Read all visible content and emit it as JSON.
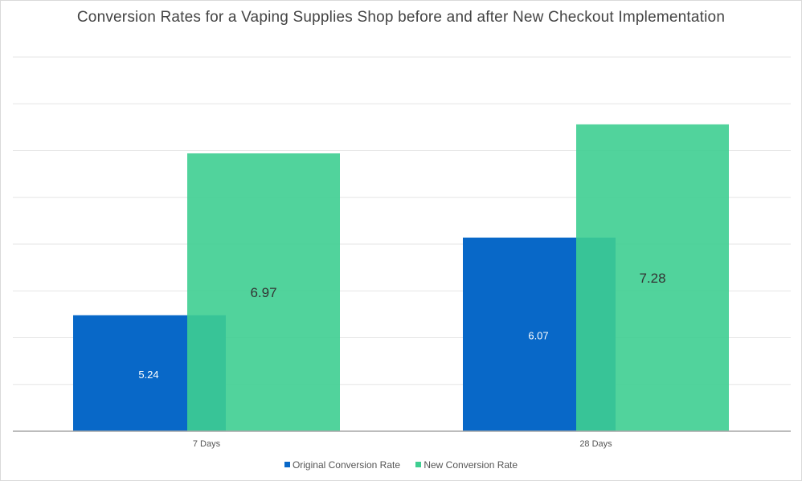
{
  "chart_data": {
    "type": "bar",
    "title": "Conversion Rates for a Vaping Supplies Shop before and after New Checkout Implementation",
    "categories": [
      "7 Days",
      "28 Days"
    ],
    "series": [
      {
        "name": "Original Conversion Rate",
        "values": [
          5.24,
          6.07
        ],
        "labels": [
          "5.24",
          "6.07"
        ],
        "color": "#0868C8"
      },
      {
        "name": "New Conversion Rate",
        "values": [
          6.97,
          7.28
        ],
        "labels": [
          "6.97",
          "7.28"
        ],
        "color": "#3ECE91"
      }
    ],
    "ylim": [
      4,
      8
    ],
    "grid": true,
    "legend": "bottom-center"
  }
}
